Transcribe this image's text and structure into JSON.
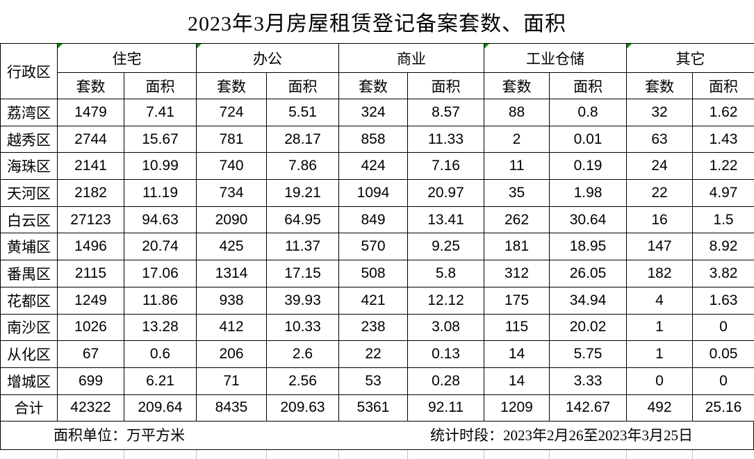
{
  "title": "2023年3月房屋租赁登记备案套数、面积",
  "table": {
    "corner_header": "行政区",
    "groups": [
      {
        "label": "住宅",
        "flagged": true
      },
      {
        "label": "办公",
        "flagged": true
      },
      {
        "label": "商业",
        "flagged": false
      },
      {
        "label": "工业仓储",
        "flagged": true
      },
      {
        "label": "其它",
        "flagged": true
      }
    ],
    "sub_headers": [
      "套数",
      "面积"
    ],
    "rows": [
      {
        "region": "荔湾区",
        "values": [
          "1479",
          "7.41",
          "724",
          "5.51",
          "324",
          "8.57",
          "88",
          "0.8",
          "32",
          "1.62"
        ]
      },
      {
        "region": "越秀区",
        "values": [
          "2744",
          "15.67",
          "781",
          "28.17",
          "858",
          "11.33",
          "2",
          "0.01",
          "63",
          "1.43"
        ]
      },
      {
        "region": "海珠区",
        "values": [
          "2141",
          "10.99",
          "740",
          "7.86",
          "424",
          "7.16",
          "11",
          "0.19",
          "24",
          "1.22"
        ]
      },
      {
        "region": "天河区",
        "values": [
          "2182",
          "11.19",
          "734",
          "19.21",
          "1094",
          "20.97",
          "35",
          "1.98",
          "22",
          "4.97"
        ]
      },
      {
        "region": "白云区",
        "values": [
          "27123",
          "94.63",
          "2090",
          "64.95",
          "849",
          "13.41",
          "262",
          "30.64",
          "16",
          "1.5"
        ]
      },
      {
        "region": "黄埔区",
        "values": [
          "1496",
          "20.74",
          "425",
          "11.37",
          "570",
          "9.25",
          "181",
          "18.95",
          "147",
          "8.92"
        ]
      },
      {
        "region": "番禺区",
        "values": [
          "2115",
          "17.06",
          "1314",
          "17.15",
          "508",
          "5.8",
          "312",
          "26.05",
          "182",
          "3.82"
        ]
      },
      {
        "region": "花都区",
        "values": [
          "1249",
          "11.86",
          "938",
          "39.93",
          "421",
          "12.12",
          "175",
          "34.94",
          "4",
          "1.63"
        ]
      },
      {
        "region": "南沙区",
        "values": [
          "1026",
          "13.28",
          "412",
          "10.33",
          "238",
          "3.08",
          "115",
          "20.02",
          "1",
          "0"
        ]
      },
      {
        "region": "从化区",
        "values": [
          "67",
          "0.6",
          "206",
          "2.6",
          "22",
          "0.13",
          "14",
          "5.75",
          "1",
          "0.05"
        ]
      },
      {
        "region": "增城区",
        "values": [
          "699",
          "6.21",
          "71",
          "2.56",
          "53",
          "0.28",
          "14",
          "3.33",
          "0",
          "0"
        ]
      },
      {
        "region": "合计",
        "values": [
          "42322",
          "209.64",
          "8435",
          "209.63",
          "5361",
          "92.11",
          "1209",
          "142.67",
          "492",
          "25.16"
        ]
      }
    ]
  },
  "footer": {
    "area_unit_note": "面积单位：万平方米",
    "period_note": "统计时段：2023年2月26至2023年3月25日"
  },
  "colors": {
    "border": "#000000",
    "flag_green": "#128a12",
    "gridline": "#bfc3d2",
    "background": "#ffffff"
  }
}
